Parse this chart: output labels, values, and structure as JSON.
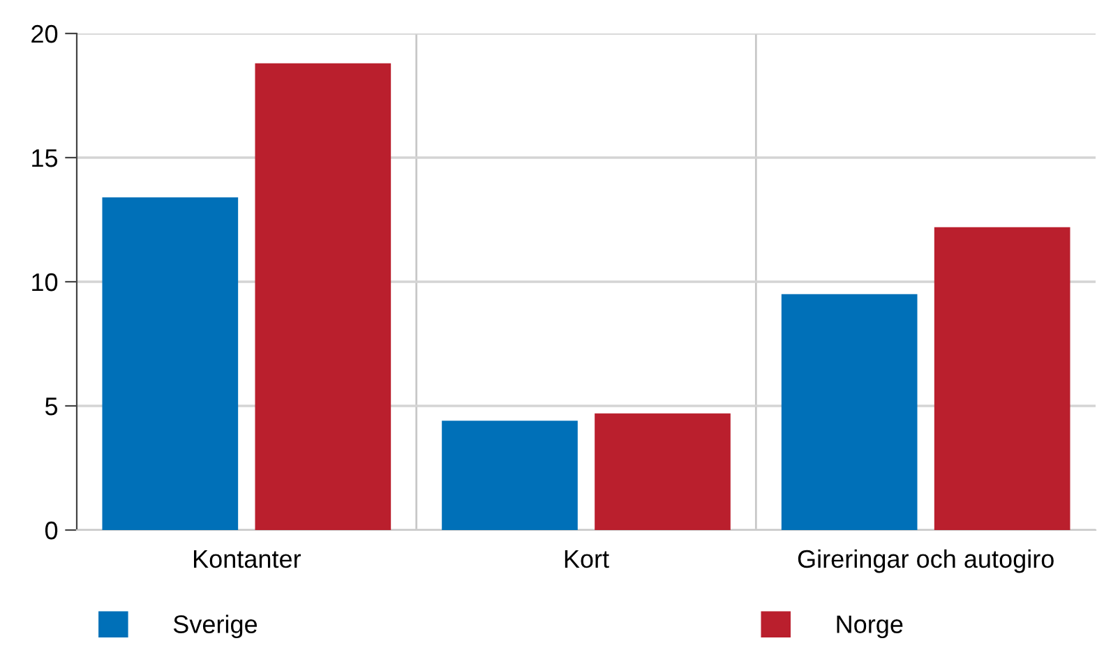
{
  "chart_data": {
    "type": "bar",
    "categories": [
      "Kontanter",
      "Kort",
      "Gireringar och autogiro"
    ],
    "series": [
      {
        "name": "Sverige",
        "color": "#0070b8",
        "values": [
          13.4,
          4.4,
          9.5
        ]
      },
      {
        "name": "Norge",
        "color": "#ba1f2d",
        "values": [
          18.8,
          4.7,
          12.2
        ]
      }
    ],
    "ylim": [
      0,
      20
    ],
    "yticks": [
      0,
      5,
      10,
      15,
      20
    ],
    "grid": true,
    "legend": "bottom"
  }
}
